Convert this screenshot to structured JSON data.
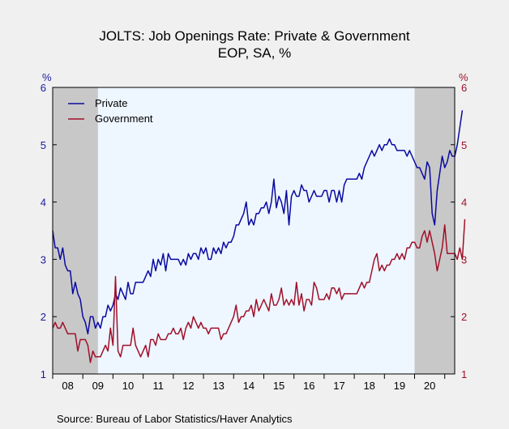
{
  "chart_data": {
    "type": "line",
    "title": "JOLTS: Job Openings Rate: Private & Government",
    "subtitle": "EOP, SA, %",
    "left_axis_label": "%",
    "right_axis_label": "%",
    "source": "Source:  Bureau of Labor Statistics/Haver Analytics",
    "ylim": [
      1,
      6
    ],
    "yticks": [
      1,
      2,
      3,
      4,
      5,
      6
    ],
    "x_start": 2008.0,
    "x_end": 2021.33,
    "xlabels": [
      {
        "text": "08",
        "at": 2008.5
      },
      {
        "text": "09",
        "at": 2009.5
      },
      {
        "text": "10",
        "at": 2010.5
      },
      {
        "text": "11",
        "at": 2011.5
      },
      {
        "text": "12",
        "at": 2012.5
      },
      {
        "text": "13",
        "at": 2013.5
      },
      {
        "text": "14",
        "at": 2014.5
      },
      {
        "text": "15",
        "at": 2015.5
      },
      {
        "text": "16",
        "at": 2016.5
      },
      {
        "text": "17",
        "at": 2017.5
      },
      {
        "text": "18",
        "at": 2018.5
      },
      {
        "text": "19",
        "at": 2019.5
      },
      {
        "text": "20",
        "at": 2020.5
      }
    ],
    "recessions": [
      [
        2008.0,
        2009.5
      ],
      [
        2020.0,
        2021.33
      ]
    ],
    "legend": "top-left",
    "colors": {
      "plot_bg": "#eef6ff",
      "recession": "#c8c8c8",
      "left_axis": "#1a1aa0",
      "right_axis": "#a0102a"
    },
    "series": [
      {
        "name": "Private",
        "color": "#0a0aa0",
        "start": 2008.0,
        "step": 0.08333,
        "values": [
          3.5,
          3.2,
          3.2,
          3.0,
          3.2,
          2.9,
          2.8,
          2.8,
          2.4,
          2.6,
          2.4,
          2.3,
          2.0,
          1.9,
          1.7,
          2.0,
          2.0,
          1.8,
          1.9,
          1.8,
          2.0,
          2.0,
          2.2,
          2.1,
          2.2,
          2.4,
          2.3,
          2.5,
          2.4,
          2.3,
          2.6,
          2.4,
          2.4,
          2.6,
          2.6,
          2.6,
          2.6,
          2.7,
          2.8,
          2.7,
          3.0,
          2.8,
          3.0,
          2.9,
          3.1,
          2.8,
          3.1,
          3.0,
          3.0,
          3.0,
          3.0,
          2.9,
          3.0,
          2.9,
          3.1,
          3.0,
          3.1,
          3.1,
          3.0,
          3.2,
          3.1,
          3.2,
          3.0,
          3.0,
          3.2,
          3.1,
          3.2,
          3.1,
          3.3,
          3.2,
          3.3,
          3.3,
          3.4,
          3.6,
          3.6,
          3.7,
          3.8,
          4.0,
          3.6,
          3.7,
          3.6,
          3.8,
          3.8,
          3.9,
          3.9,
          4.0,
          3.8,
          4.0,
          4.4,
          3.9,
          4.1,
          4.0,
          3.8,
          4.2,
          3.6,
          4.1,
          4.2,
          4.1,
          4.1,
          4.3,
          4.2,
          4.2,
          4.0,
          4.1,
          4.2,
          4.1,
          4.1,
          4.1,
          4.2,
          4.2,
          4.0,
          4.2,
          4.2,
          4.0,
          4.2,
          4.0,
          4.3,
          4.4,
          4.4,
          4.4,
          4.4,
          4.4,
          4.5,
          4.4,
          4.6,
          4.7,
          4.8,
          4.9,
          4.8,
          4.9,
          5.0,
          4.9,
          5.0,
          5.0,
          5.1,
          5.0,
          5.0,
          4.9,
          4.9,
          4.9,
          4.9,
          4.8,
          4.9,
          4.8,
          4.7,
          4.6,
          4.6,
          4.5,
          4.4,
          4.7,
          4.6,
          3.8,
          3.6,
          4.2,
          4.5,
          4.8,
          4.6,
          4.7,
          4.9,
          4.8,
          4.8,
          5.0,
          5.3,
          5.6
        ]
      },
      {
        "name": "Government",
        "color": "#a0102a",
        "start": 2008.0,
        "step": 0.08333,
        "values": [
          1.8,
          1.9,
          1.8,
          1.8,
          1.9,
          1.8,
          1.7,
          1.7,
          1.7,
          1.7,
          1.4,
          1.6,
          1.6,
          1.6,
          1.5,
          1.2,
          1.4,
          1.3,
          1.3,
          1.3,
          1.4,
          1.5,
          1.4,
          1.8,
          1.5,
          2.7,
          1.4,
          1.3,
          1.5,
          1.5,
          1.5,
          1.5,
          1.8,
          1.5,
          1.4,
          1.3,
          1.4,
          1.5,
          1.3,
          1.6,
          1.6,
          1.5,
          1.7,
          1.6,
          1.6,
          1.6,
          1.7,
          1.7,
          1.8,
          1.7,
          1.7,
          1.8,
          1.6,
          1.8,
          1.9,
          1.8,
          2.0,
          1.9,
          1.8,
          1.9,
          1.8,
          1.8,
          1.7,
          1.8,
          1.8,
          1.8,
          1.8,
          1.6,
          1.7,
          1.7,
          1.8,
          1.9,
          2.0,
          2.2,
          1.9,
          2.0,
          2.0,
          2.1,
          2.1,
          2.2,
          2.0,
          2.3,
          2.1,
          2.2,
          2.3,
          2.2,
          2.1,
          2.4,
          2.2,
          2.2,
          2.3,
          2.5,
          2.2,
          2.3,
          2.2,
          2.3,
          2.2,
          2.6,
          2.2,
          2.4,
          2.1,
          2.3,
          2.3,
          2.2,
          2.6,
          2.5,
          2.3,
          2.3,
          2.3,
          2.4,
          2.3,
          2.5,
          2.5,
          2.4,
          2.5,
          2.3,
          2.4,
          2.4,
          2.4,
          2.4,
          2.4,
          2.4,
          2.5,
          2.6,
          2.5,
          2.6,
          2.6,
          2.8,
          3.0,
          3.1,
          2.8,
          2.9,
          2.8,
          2.9,
          2.9,
          3.0,
          3.0,
          3.1,
          3.0,
          3.1,
          3.0,
          3.2,
          3.2,
          3.3,
          3.3,
          3.2,
          3.2,
          3.4,
          3.5,
          3.3,
          3.5,
          3.3,
          3.1,
          2.8,
          3.0,
          3.2,
          3.6,
          3.1,
          3.1,
          3.1,
          3.1,
          3.0,
          3.2,
          3.0,
          3.7
        ]
      }
    ]
  }
}
